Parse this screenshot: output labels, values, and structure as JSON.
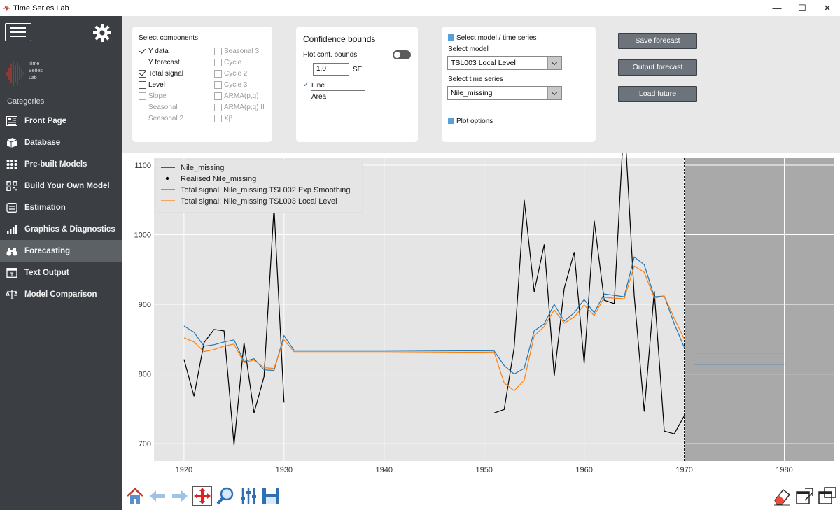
{
  "window": {
    "title": "Time Series Lab",
    "controls": [
      "—",
      "☐",
      "✕"
    ]
  },
  "sidebar": {
    "logo_text": [
      "Time",
      "Series",
      "Lab"
    ],
    "categories_label": "Categories",
    "items": [
      {
        "label": "Front Page",
        "icon": "front-page-icon"
      },
      {
        "label": "Database",
        "icon": "database-icon"
      },
      {
        "label": "Pre-built Models",
        "icon": "grid-icon"
      },
      {
        "label": "Build Your Own Model",
        "icon": "build-model-icon"
      },
      {
        "label": "Estimation",
        "icon": "estimation-icon"
      },
      {
        "label": "Graphics & Diagnostics",
        "icon": "bar-chart-icon"
      },
      {
        "label": "Forecasting",
        "icon": "binoculars-icon",
        "active": true
      },
      {
        "label": "Text Output",
        "icon": "text-output-icon"
      },
      {
        "label": "Model Comparison",
        "icon": "model-comparison-icon"
      }
    ]
  },
  "components": {
    "title": "Select components",
    "col1": [
      {
        "label": "Y data",
        "checked": true,
        "enabled": true
      },
      {
        "label": "Y forecast",
        "checked": false,
        "enabled": true
      },
      {
        "label": "Total signal",
        "checked": true,
        "enabled": true
      },
      {
        "label": "Level",
        "checked": false,
        "enabled": true
      },
      {
        "label": "Slope",
        "checked": false,
        "enabled": false
      },
      {
        "label": "Seasonal",
        "checked": false,
        "enabled": false
      },
      {
        "label": "Seasonal 2",
        "checked": false,
        "enabled": false
      }
    ],
    "col2": [
      {
        "label": "Seasonal 3",
        "checked": false,
        "enabled": false
      },
      {
        "label": "Cycle",
        "checked": false,
        "enabled": false
      },
      {
        "label": "Cycle 2",
        "checked": false,
        "enabled": false
      },
      {
        "label": "Cycle 3",
        "checked": false,
        "enabled": false
      },
      {
        "label": "ARMA(p,q)",
        "checked": false,
        "enabled": false
      },
      {
        "label": "ARMA(p,q) II",
        "checked": false,
        "enabled": false
      },
      {
        "label": "Xβ",
        "checked": false,
        "enabled": false
      }
    ]
  },
  "confidence": {
    "title": "Confidence bounds",
    "plot_label": "Plot conf. bounds",
    "se_value": "1.0",
    "se_unit": "SE",
    "options": [
      {
        "label": "Line",
        "selected": true
      },
      {
        "label": "Area",
        "selected": false
      }
    ]
  },
  "model": {
    "header": "Select model / time series",
    "model_label": "Select model",
    "model_value": "TSL003 Local Level",
    "series_label": "Select time series",
    "series_value": "Nile_missing",
    "plot_options": "Plot options"
  },
  "actions": {
    "save": "Save forecast",
    "output": "Output forecast",
    "load": "Load future"
  },
  "chart_data": {
    "type": "line",
    "title": "",
    "xlabel": "",
    "ylabel": "",
    "xlim": [
      1917,
      1985
    ],
    "ylim": [
      675,
      1110
    ],
    "xticks": [
      "1920",
      "1930",
      "1940",
      "1950",
      "1960",
      "1970",
      "1980"
    ],
    "yticks": [
      "700",
      "800",
      "900",
      "1000",
      "1100"
    ],
    "forecast_start": 1970,
    "grid": true,
    "legend_position": "top-left",
    "series": [
      {
        "name": "Nile_missing",
        "color": "#000000",
        "x": [
          1920,
          1921,
          1922,
          1923,
          1924,
          1925,
          1926,
          1927,
          1928,
          1929,
          1930
        ],
        "y": [
          821,
          768,
          845,
          864,
          862,
          698,
          845,
          744,
          796,
          1040,
          759
        ]
      },
      {
        "name": "Nile_missing",
        "color": "#000000",
        "legend": false,
        "x": [
          1951,
          1952,
          1953,
          1954,
          1955,
          1956,
          1957,
          1958,
          1959,
          1960,
          1961,
          1962,
          1963,
          1964,
          1965,
          1966,
          1967,
          1968,
          1969,
          1970
        ],
        "y": [
          744,
          749,
          838,
          1050,
          918,
          986,
          797,
          923,
          975,
          815,
          1020,
          906,
          901,
          1170,
          912,
          746,
          919,
          718,
          714,
          740
        ]
      },
      {
        "name": "Realised Nile_missing",
        "marker": "dot",
        "color": "#000000",
        "x": [],
        "y": []
      },
      {
        "name": "Total signal: Nile_missing TSL002 Exp Smoothing",
        "color": "#1f77b4",
        "x": [
          1920,
          1921,
          1922,
          1923,
          1924,
          1925,
          1926,
          1927,
          1928,
          1929,
          1930,
          1931,
          1940,
          1951,
          1952,
          1953,
          1954,
          1955,
          1956,
          1957,
          1958,
          1959,
          1960,
          1961,
          1962,
          1963,
          1964,
          1965,
          1966,
          1967,
          1968,
          1969,
          1970
        ],
        "y": [
          869,
          860,
          840,
          842,
          846,
          849,
          818,
          822,
          806,
          805,
          855,
          834,
          834,
          833,
          812,
          800,
          808,
          862,
          872,
          900,
          876,
          888,
          907,
          888,
          915,
          913,
          911,
          968,
          957,
          911,
          912,
          872,
          838
        ]
      },
      {
        "name": "Total signal: Nile_missing TSL003 Local Level",
        "color": "#ff7f0e",
        "x": [
          1920,
          1921,
          1922,
          1923,
          1924,
          1925,
          1926,
          1927,
          1928,
          1929,
          1930,
          1931,
          1940,
          1951,
          1952,
          1953,
          1954,
          1955,
          1956,
          1957,
          1958,
          1959,
          1960,
          1961,
          1962,
          1963,
          1964,
          1965,
          1966,
          1967,
          1968,
          1969,
          1970
        ],
        "y": [
          852,
          846,
          832,
          835,
          840,
          843,
          816,
          820,
          809,
          808,
          849,
          832,
          832,
          831,
          787,
          776,
          791,
          855,
          868,
          892,
          873,
          882,
          899,
          884,
          910,
          909,
          908,
          955,
          946,
          909,
          912,
          880,
          850
        ]
      }
    ],
    "forecasts": [
      {
        "name": "TSL002 Exp Smoothing",
        "color": "#1f77b4",
        "x": [
          1971,
          1980
        ],
        "y": [
          814,
          814
        ]
      },
      {
        "name": "TSL003 Local Level",
        "color": "#ff7f0e",
        "x": [
          1971,
          1980
        ],
        "y": [
          830,
          830
        ]
      }
    ]
  },
  "toolbar": {
    "icons": [
      "home-icon",
      "back-arrow-icon",
      "forward-arrow-icon",
      "pan-icon",
      "zoom-icon",
      "configure-subplots-icon",
      "save-figure-icon"
    ],
    "right_icons": [
      "eraser-icon",
      "dock-window-icon",
      "undock-window-icon"
    ]
  }
}
